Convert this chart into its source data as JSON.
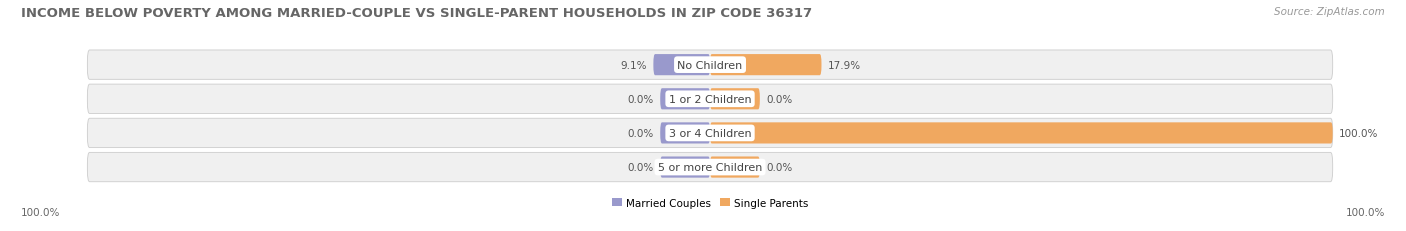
{
  "title": "INCOME BELOW POVERTY AMONG MARRIED-COUPLE VS SINGLE-PARENT HOUSEHOLDS IN ZIP CODE 36317",
  "source": "Source: ZipAtlas.com",
  "categories": [
    "No Children",
    "1 or 2 Children",
    "3 or 4 Children",
    "5 or more Children"
  ],
  "married_values": [
    9.1,
    0.0,
    0.0,
    0.0
  ],
  "single_values": [
    17.9,
    0.0,
    100.0,
    0.0
  ],
  "married_color": "#9999cc",
  "single_color": "#f0a860",
  "bar_bg_color": "#e8e8e8",
  "row_bg_color": "#f0f0f0",
  "title_fontsize": 9.5,
  "source_fontsize": 7.5,
  "label_fontsize": 7.5,
  "category_fontsize": 8,
  "xlim": 100,
  "legend_married": "Married Couples",
  "legend_single": "Single Parents",
  "bottom_left_label": "100.0%",
  "bottom_right_label": "100.0%"
}
